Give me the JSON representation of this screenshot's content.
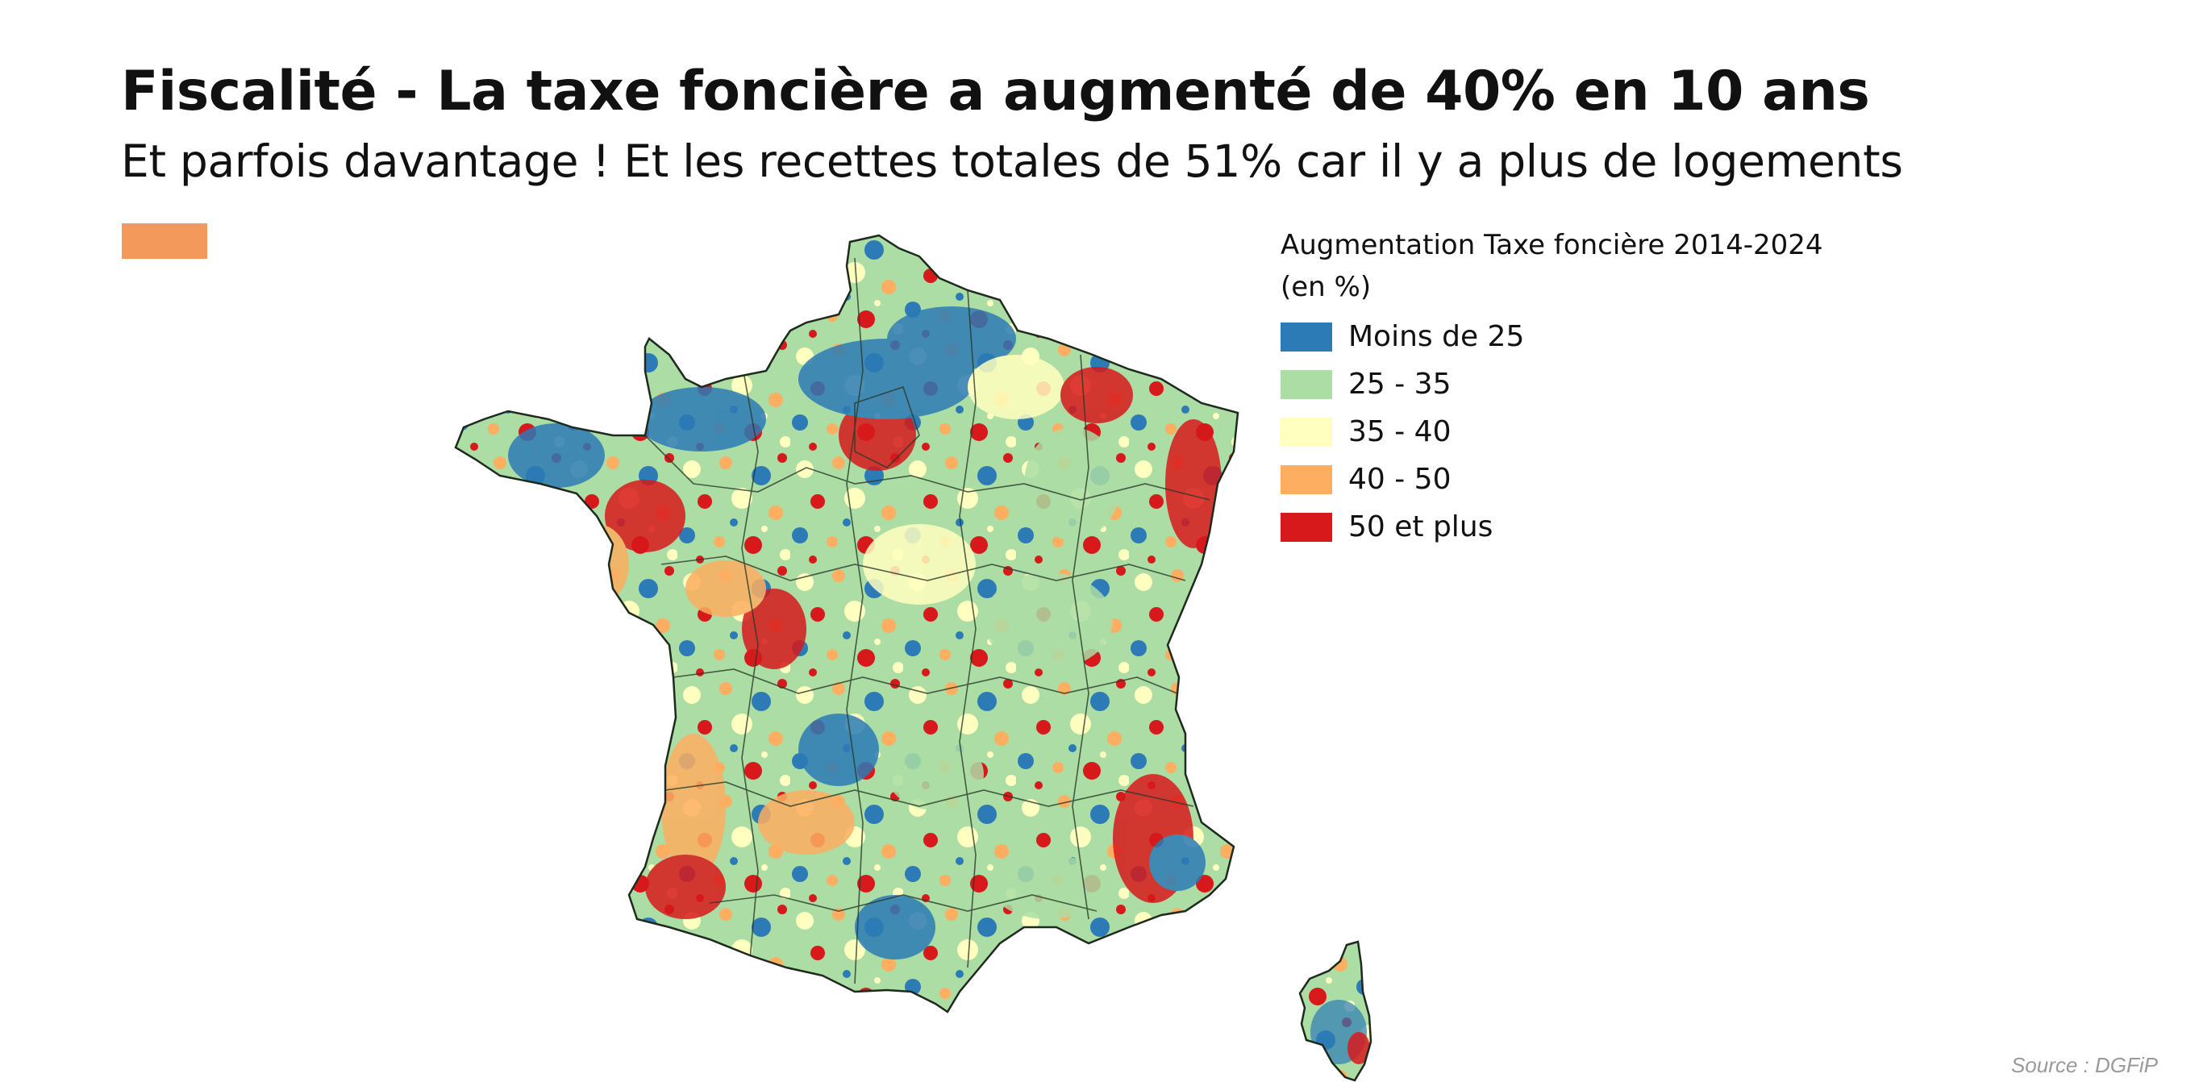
{
  "slide": {
    "title": "Fiscalité - La taxe foncière a augmenté de 40% en 10 ans",
    "subtitle": "Et parfois davantage ! Et les recettes totales de 51% car il y a plus de logements",
    "accent_color": "#f4995c",
    "source": "Source : DGFiP"
  },
  "legend": {
    "title_line1": "Augmentation Taxe foncière 2014-2024",
    "title_line2": "(en %)",
    "items": [
      {
        "label": "Moins de 25",
        "color": "#2c7bb6"
      },
      {
        "label": "25 - 35",
        "color": "#abdda4"
      },
      {
        "label": "35 - 40",
        "color": "#ffffbf"
      },
      {
        "label": "40 - 50",
        "color": "#fdae61"
      },
      {
        "label": "50 et plus",
        "color": "#d7191c"
      }
    ]
  },
  "map": {
    "regions": [
      "metropolitan-france",
      "corsica"
    ],
    "border_color": "#2a3a2a"
  }
}
